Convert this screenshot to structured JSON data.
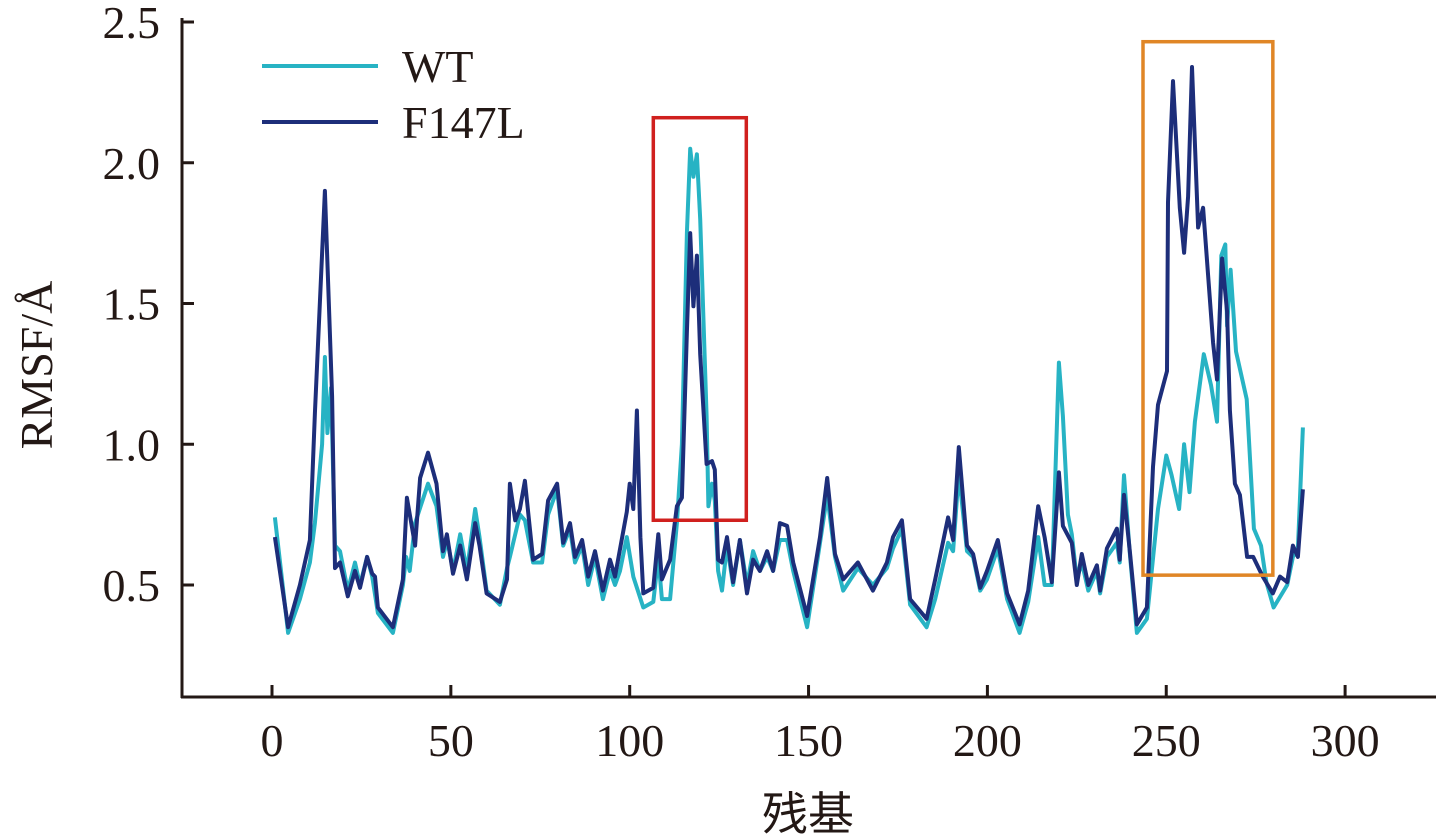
{
  "chart_data": {
    "type": "line",
    "title": "",
    "xlabel": "残基",
    "ylabel": "RMSF/Å",
    "xlim": [
      -25,
      325
    ],
    "ylim": [
      0.1,
      2.51
    ],
    "xticks": [
      0,
      50,
      100,
      150,
      200,
      250,
      300
    ],
    "xtick_labels": [
      "0",
      "50",
      "100",
      "150",
      "200",
      "250",
      "300"
    ],
    "yticks": [
      0.5,
      1.0,
      1.5,
      2.0,
      2.5
    ],
    "ytick_labels": [
      "0.5",
      "1.0",
      "1.5",
      "2.0",
      "2.5"
    ],
    "grid": false,
    "legend_position": "top-left",
    "series": [
      {
        "name": "WT",
        "color": "#27b3c4",
        "points": [
          [
            0.8,
            0.74
          ],
          [
            4.5,
            0.33
          ],
          [
            7.8,
            0.45
          ],
          [
            10.6,
            0.58
          ],
          [
            12,
            0.72
          ],
          [
            14,
            1.0
          ],
          [
            14.8,
            1.31
          ],
          [
            15.5,
            1.04
          ],
          [
            16.5,
            1.2
          ],
          [
            17.6,
            0.64
          ],
          [
            19,
            0.62
          ],
          [
            21.2,
            0.48
          ],
          [
            23.2,
            0.58
          ],
          [
            24.6,
            0.5
          ],
          [
            26.6,
            0.6
          ],
          [
            28,
            0.53
          ],
          [
            29.6,
            0.4
          ],
          [
            33.8,
            0.33
          ],
          [
            36.6,
            0.5
          ],
          [
            37.5,
            0.6
          ],
          [
            38.5,
            0.55
          ],
          [
            40,
            0.72
          ],
          [
            43.6,
            0.86
          ],
          [
            46,
            0.78
          ],
          [
            47.8,
            0.6
          ],
          [
            49,
            0.66
          ],
          [
            50.6,
            0.55
          ],
          [
            52.6,
            0.68
          ],
          [
            54.5,
            0.55
          ],
          [
            56.8,
            0.77
          ],
          [
            58,
            0.67
          ],
          [
            60,
            0.48
          ],
          [
            63.7,
            0.43
          ],
          [
            65.7,
            0.56
          ],
          [
            66.5,
            0.6
          ],
          [
            69.3,
            0.75
          ],
          [
            70.7,
            0.73
          ],
          [
            73,
            0.58
          ],
          [
            75.5,
            0.58
          ],
          [
            77.2,
            0.75
          ],
          [
            79.7,
            0.84
          ],
          [
            81.4,
            0.64
          ],
          [
            83.3,
            0.7
          ],
          [
            84.7,
            0.58
          ],
          [
            86.7,
            0.64
          ],
          [
            88.4,
            0.5
          ],
          [
            90.3,
            0.6
          ],
          [
            92.5,
            0.45
          ],
          [
            94.5,
            0.55
          ],
          [
            95.9,
            0.5
          ],
          [
            97.3,
            0.55
          ],
          [
            99.2,
            0.67
          ],
          [
            101,
            0.53
          ],
          [
            103.8,
            0.42
          ],
          [
            106.6,
            0.44
          ],
          [
            108,
            0.6
          ],
          [
            109,
            0.45
          ],
          [
            111.3,
            0.45
          ],
          [
            113.2,
            0.72
          ],
          [
            114.6,
            1.0
          ],
          [
            116,
            1.75
          ],
          [
            116.9,
            2.05
          ],
          [
            117.8,
            1.95
          ],
          [
            118.8,
            2.03
          ],
          [
            119.7,
            1.8
          ],
          [
            121.5,
            1.1
          ],
          [
            122,
            0.78
          ],
          [
            123,
            0.86
          ],
          [
            123.8,
            0.8
          ],
          [
            124.7,
            0.55
          ],
          [
            125.8,
            0.48
          ],
          [
            127.2,
            0.64
          ],
          [
            128.9,
            0.5
          ],
          [
            130.8,
            0.66
          ],
          [
            132.8,
            0.5
          ],
          [
            134.5,
            0.62
          ],
          [
            136.4,
            0.55
          ],
          [
            138.4,
            0.6
          ],
          [
            140.1,
            0.55
          ],
          [
            142,
            0.66
          ],
          [
            144,
            0.66
          ],
          [
            145.7,
            0.55
          ],
          [
            149.6,
            0.35
          ],
          [
            153.2,
            0.65
          ],
          [
            155.2,
            0.82
          ],
          [
            157.4,
            0.6
          ],
          [
            159.7,
            0.48
          ],
          [
            163.8,
            0.56
          ],
          [
            168,
            0.5
          ],
          [
            171.9,
            0.56
          ],
          [
            173.6,
            0.63
          ],
          [
            176.1,
            0.7
          ],
          [
            178.4,
            0.43
          ],
          [
            183,
            0.35
          ],
          [
            185.4,
            0.45
          ],
          [
            189,
            0.65
          ],
          [
            190.4,
            0.62
          ],
          [
            192,
            0.9
          ],
          [
            194.3,
            0.62
          ],
          [
            196,
            0.6
          ],
          [
            198,
            0.48
          ],
          [
            199.9,
            0.52
          ],
          [
            202.9,
            0.63
          ],
          [
            205.5,
            0.45
          ],
          [
            209,
            0.33
          ],
          [
            211.4,
            0.44
          ],
          [
            214.2,
            0.67
          ],
          [
            216,
            0.5
          ],
          [
            218,
            0.5
          ],
          [
            219,
            0.9
          ],
          [
            220,
            1.29
          ],
          [
            221.1,
            1.1
          ],
          [
            222.5,
            0.75
          ],
          [
            223.6,
            0.68
          ],
          [
            225,
            0.52
          ],
          [
            226.4,
            0.58
          ],
          [
            228.2,
            0.48
          ],
          [
            230.6,
            0.55
          ],
          [
            231.5,
            0.47
          ],
          [
            233.4,
            0.6
          ],
          [
            236.2,
            0.65
          ],
          [
            237,
            0.58
          ],
          [
            238.2,
            0.89
          ],
          [
            239.9,
            0.6
          ],
          [
            241.8,
            0.33
          ],
          [
            244.6,
            0.38
          ],
          [
            247.7,
            0.77
          ],
          [
            250,
            0.96
          ],
          [
            251.5,
            0.89
          ],
          [
            253.6,
            0.77
          ],
          [
            255,
            1.0
          ],
          [
            256.5,
            0.83
          ],
          [
            258,
            1.08
          ],
          [
            260.5,
            1.32
          ],
          [
            262.5,
            1.21
          ],
          [
            264.2,
            1.08
          ],
          [
            265.4,
            1.67
          ],
          [
            266.5,
            1.71
          ],
          [
            267,
            1.42
          ],
          [
            268,
            1.62
          ],
          [
            269.5,
            1.33
          ],
          [
            272.5,
            1.16
          ],
          [
            274.5,
            0.7
          ],
          [
            276.5,
            0.64
          ],
          [
            278,
            0.51
          ],
          [
            280,
            0.42
          ],
          [
            283.8,
            0.5
          ],
          [
            285.4,
            0.6
          ],
          [
            286.8,
            0.63
          ],
          [
            288.2,
            1.06
          ]
        ]
      },
      {
        "name": "F147L",
        "color": "#1d2e7a",
        "points": [
          [
            0.8,
            0.67
          ],
          [
            4.5,
            0.35
          ],
          [
            7.8,
            0.5
          ],
          [
            10.6,
            0.66
          ],
          [
            12,
            1.11
          ],
          [
            14.8,
            1.9
          ],
          [
            16.8,
            1.17
          ],
          [
            17.6,
            0.56
          ],
          [
            19,
            0.58
          ],
          [
            21.2,
            0.46
          ],
          [
            23.2,
            0.55
          ],
          [
            24.6,
            0.49
          ],
          [
            26.6,
            0.6
          ],
          [
            28,
            0.54
          ],
          [
            28.8,
            0.53
          ],
          [
            29.6,
            0.42
          ],
          [
            33.8,
            0.35
          ],
          [
            36.6,
            0.52
          ],
          [
            37.7,
            0.81
          ],
          [
            40,
            0.64
          ],
          [
            41.4,
            0.88
          ],
          [
            43.6,
            0.97
          ],
          [
            46,
            0.86
          ],
          [
            47.8,
            0.62
          ],
          [
            48.9,
            0.68
          ],
          [
            50.6,
            0.54
          ],
          [
            52.6,
            0.64
          ],
          [
            54.5,
            0.52
          ],
          [
            56.8,
            0.72
          ],
          [
            58,
            0.64
          ],
          [
            60,
            0.47
          ],
          [
            63.7,
            0.44
          ],
          [
            65.7,
            0.52
          ],
          [
            66.5,
            0.86
          ],
          [
            68,
            0.73
          ],
          [
            69.3,
            0.77
          ],
          [
            70.7,
            0.87
          ],
          [
            73,
            0.59
          ],
          [
            75.5,
            0.61
          ],
          [
            77.2,
            0.8
          ],
          [
            79.7,
            0.86
          ],
          [
            81.4,
            0.65
          ],
          [
            83.3,
            0.72
          ],
          [
            84.7,
            0.6
          ],
          [
            86.7,
            0.66
          ],
          [
            88.4,
            0.53
          ],
          [
            90.3,
            0.62
          ],
          [
            92.5,
            0.48
          ],
          [
            94.5,
            0.59
          ],
          [
            95.9,
            0.53
          ],
          [
            99.2,
            0.76
          ],
          [
            100,
            0.86
          ],
          [
            101,
            0.77
          ],
          [
            102,
            1.12
          ],
          [
            103,
            0.67
          ],
          [
            103.8,
            0.47
          ],
          [
            106.6,
            0.49
          ],
          [
            108,
            0.68
          ],
          [
            109,
            0.52
          ],
          [
            111.3,
            0.59
          ],
          [
            113.2,
            0.78
          ],
          [
            114.6,
            0.81
          ],
          [
            116,
            1.4
          ],
          [
            116.9,
            1.75
          ],
          [
            117.8,
            1.49
          ],
          [
            118.8,
            1.67
          ],
          [
            119.7,
            1.32
          ],
          [
            121.5,
            0.93
          ],
          [
            123,
            0.94
          ],
          [
            123.8,
            0.91
          ],
          [
            124.7,
            0.59
          ],
          [
            125.8,
            0.58
          ],
          [
            127.2,
            0.67
          ],
          [
            128.9,
            0.51
          ],
          [
            130.8,
            0.66
          ],
          [
            132.8,
            0.47
          ],
          [
            134.5,
            0.59
          ],
          [
            136.4,
            0.55
          ],
          [
            138.4,
            0.62
          ],
          [
            140.1,
            0.55
          ],
          [
            142,
            0.72
          ],
          [
            144,
            0.71
          ],
          [
            145.7,
            0.58
          ],
          [
            149.6,
            0.39
          ],
          [
            153.2,
            0.67
          ],
          [
            155.2,
            0.88
          ],
          [
            157.4,
            0.61
          ],
          [
            159.7,
            0.52
          ],
          [
            163.8,
            0.58
          ],
          [
            168,
            0.48
          ],
          [
            171.9,
            0.58
          ],
          [
            173.6,
            0.67
          ],
          [
            176.1,
            0.73
          ],
          [
            178.4,
            0.45
          ],
          [
            183,
            0.38
          ],
          [
            185.4,
            0.52
          ],
          [
            189,
            0.74
          ],
          [
            190.4,
            0.66
          ],
          [
            192,
            0.99
          ],
          [
            194.3,
            0.64
          ],
          [
            196,
            0.61
          ],
          [
            198,
            0.49
          ],
          [
            199.9,
            0.55
          ],
          [
            202.9,
            0.66
          ],
          [
            205.5,
            0.47
          ],
          [
            209,
            0.36
          ],
          [
            211.4,
            0.48
          ],
          [
            214.2,
            0.78
          ],
          [
            216,
            0.67
          ],
          [
            218,
            0.51
          ],
          [
            220,
            0.9
          ],
          [
            221.1,
            0.71
          ],
          [
            223.6,
            0.65
          ],
          [
            225,
            0.5
          ],
          [
            226.4,
            0.61
          ],
          [
            228.2,
            0.5
          ],
          [
            230.6,
            0.57
          ],
          [
            231.5,
            0.48
          ],
          [
            233.4,
            0.63
          ],
          [
            236.2,
            0.7
          ],
          [
            237,
            0.59
          ],
          [
            238.2,
            0.82
          ],
          [
            239.9,
            0.61
          ],
          [
            241.8,
            0.36
          ],
          [
            244.6,
            0.42
          ],
          [
            246.3,
            0.92
          ],
          [
            247.7,
            1.14
          ],
          [
            250.2,
            1.26
          ],
          [
            250.5,
            1.86
          ],
          [
            251.9,
            2.29
          ],
          [
            253.8,
            1.84
          ],
          [
            255,
            1.68
          ],
          [
            256.1,
            1.88
          ],
          [
            257.2,
            2.34
          ],
          [
            258.9,
            1.77
          ],
          [
            260.3,
            1.84
          ],
          [
            261.7,
            1.6
          ],
          [
            263.1,
            1.36
          ],
          [
            264.2,
            1.23
          ],
          [
            265.6,
            1.66
          ],
          [
            267,
            1.47
          ],
          [
            267.8,
            1.12
          ],
          [
            269.2,
            0.86
          ],
          [
            270.6,
            0.82
          ],
          [
            272.6,
            0.6
          ],
          [
            274.3,
            0.6
          ],
          [
            277,
            0.53
          ],
          [
            279.8,
            0.47
          ],
          [
            281.8,
            0.53
          ],
          [
            283.8,
            0.51
          ],
          [
            285.4,
            0.64
          ],
          [
            286.8,
            0.6
          ],
          [
            288.2,
            0.84
          ]
        ]
      }
    ],
    "annotations": [
      {
        "type": "rect",
        "color": "#d0201e",
        "x_range": [
          106.6,
          132.6
        ],
        "y_range": [
          0.73,
          2.16
        ]
      },
      {
        "type": "rect",
        "color": "#e08626",
        "x_range": [
          243.5,
          279.8
        ],
        "y_range": [
          0.535,
          2.43
        ]
      }
    ]
  }
}
